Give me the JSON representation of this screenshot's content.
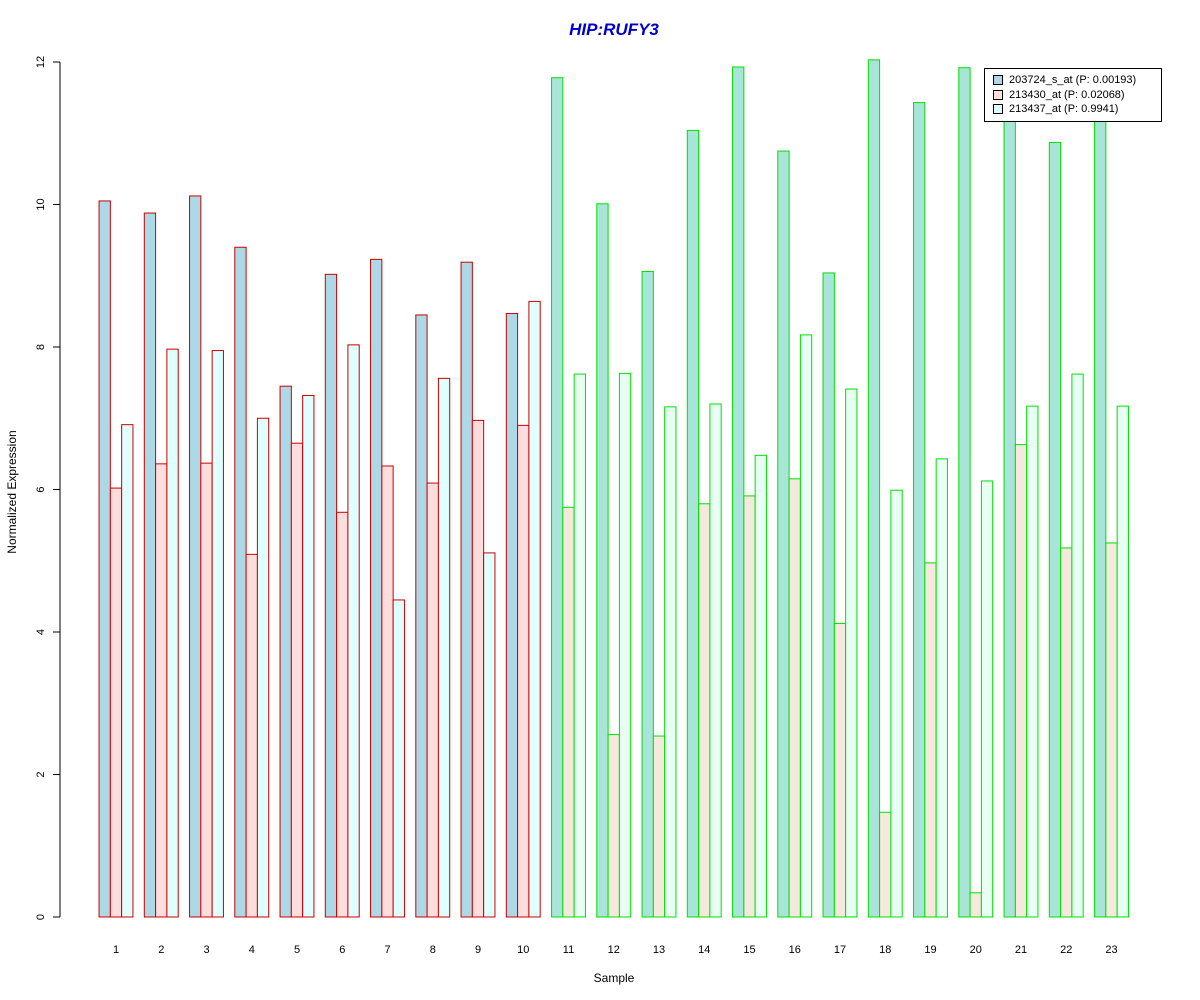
{
  "chart_data": {
    "type": "bar",
    "title": "HIP:RUFY3",
    "xlabel": "Sample",
    "ylabel": "Normalized Expression",
    "ylim": [
      0,
      12
    ],
    "yticks": [
      0,
      2,
      4,
      6,
      8,
      10,
      12
    ],
    "categories": [
      "1",
      "2",
      "3",
      "4",
      "5",
      "6",
      "7",
      "8",
      "9",
      "10",
      "11",
      "12",
      "13",
      "14",
      "15",
      "16",
      "17",
      "18",
      "19",
      "20",
      "21",
      "22",
      "23"
    ],
    "groups": [
      {
        "samples": [
          1,
          2,
          3,
          4,
          5,
          6,
          7,
          8,
          9,
          10
        ],
        "border_color": "#CC0000"
      },
      {
        "samples": [
          11,
          12,
          13,
          14,
          15,
          16,
          17,
          18,
          19,
          20,
          21,
          22,
          23
        ],
        "border_color": "#00E000"
      }
    ],
    "series": [
      {
        "name": "203724_s_at (P: 0.00193)",
        "fill_group1": "#ADD8E6",
        "fill_group2": "#A8E4D8",
        "values": [
          10.05,
          9.88,
          10.12,
          9.4,
          7.45,
          9.02,
          9.23,
          8.45,
          9.19,
          8.47,
          11.78,
          10.01,
          9.06,
          11.04,
          11.93,
          10.75,
          9.04,
          12.03,
          11.43,
          11.92,
          11.25,
          10.87,
          11.2
        ]
      },
      {
        "name": "213430_at (P: 0.02068)",
        "fill_group1": "#FFDDDD",
        "fill_group2": "#F5E8DC",
        "values": [
          6.02,
          6.36,
          6.37,
          5.09,
          6.65,
          5.68,
          6.33,
          6.09,
          6.97,
          6.9,
          5.75,
          2.56,
          2.54,
          5.8,
          5.91,
          6.15,
          4.12,
          1.47,
          4.97,
          0.34,
          6.63,
          5.18,
          5.25
        ]
      },
      {
        "name": "213437_at (P: 0.9941)",
        "fill_group1": "#E0FFFF",
        "fill_group2": "#E8FFF4",
        "values": [
          6.91,
          7.97,
          7.95,
          7.0,
          7.32,
          8.03,
          4.45,
          7.56,
          5.11,
          8.64,
          7.62,
          7.63,
          7.16,
          7.2,
          6.48,
          8.17,
          7.41,
          5.99,
          6.43,
          6.12,
          7.17,
          7.62,
          7.17
        ]
      }
    ],
    "legend_position": "top-right",
    "grid": false
  }
}
